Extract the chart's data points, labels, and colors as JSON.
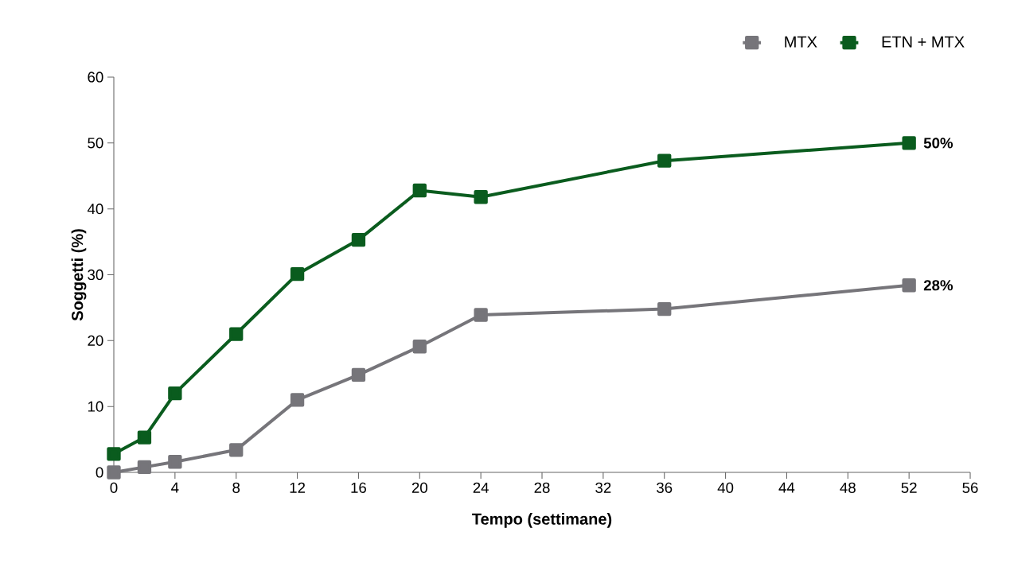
{
  "chart_data": {
    "type": "line",
    "xlabel": "Tempo (settimane)",
    "ylabel": "Soggetti (%)",
    "x": [
      0,
      2,
      4,
      8,
      12,
      16,
      20,
      24,
      36,
      52
    ],
    "series": [
      {
        "name": "MTX",
        "color": "#76757a",
        "values": [
          0,
          0.8,
          1.6,
          3.4,
          11,
          14.8,
          19.1,
          23.9,
          24.8,
          28.4
        ]
      },
      {
        "name": "ETN + MTX",
        "color": "#0a5c1e",
        "values": [
          2.8,
          5.3,
          12,
          21,
          30.1,
          35.3,
          42.8,
          41.8,
          47.3,
          50
        ]
      }
    ],
    "xlim": [
      0,
      56
    ],
    "xticks": [
      0,
      4,
      8,
      12,
      16,
      20,
      24,
      28,
      32,
      36,
      40,
      44,
      48,
      52,
      56
    ],
    "ylim": [
      0,
      60
    ],
    "yticks": [
      0,
      10,
      20,
      30,
      40,
      50,
      60
    ],
    "annotations": [
      {
        "text": "50%",
        "x": 52,
        "y": 50
      },
      {
        "text": "28%",
        "x": 52,
        "y": 28.4
      }
    ],
    "legend": "top right",
    "marker": "square",
    "line_style": "solid",
    "grid": false
  }
}
